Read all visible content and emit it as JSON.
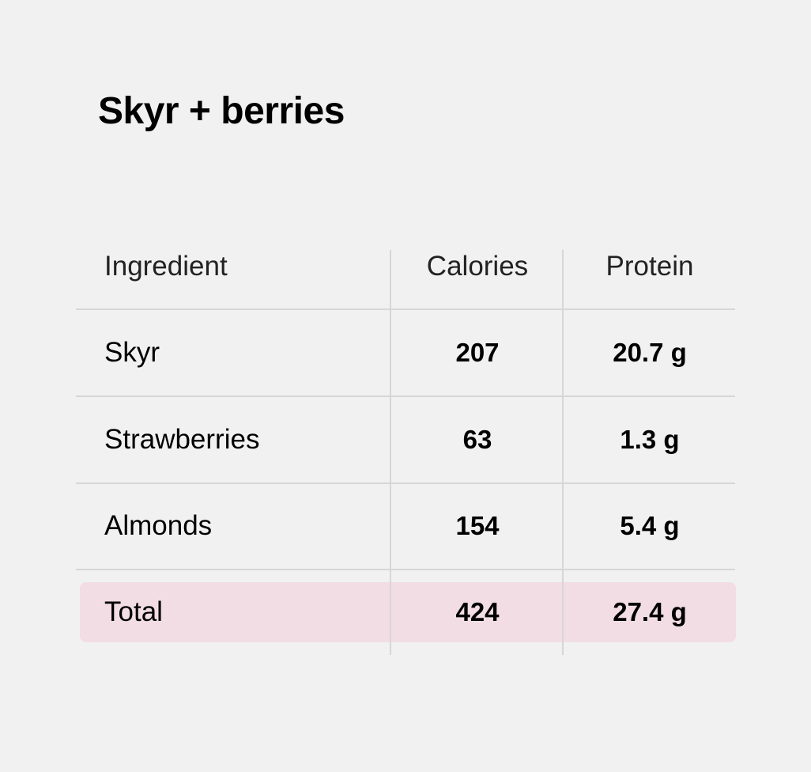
{
  "title": "Skyr + berries",
  "table": {
    "headers": {
      "ingredient": "Ingredient",
      "calories": "Calories",
      "protein": "Protein"
    },
    "rows": [
      {
        "ingredient": "Skyr",
        "calories": "207",
        "protein": "20.7 g"
      },
      {
        "ingredient": "Strawberries",
        "calories": "63",
        "protein": "1.3 g"
      },
      {
        "ingredient": "Almonds",
        "calories": "154",
        "protein": "5.4 g"
      }
    ],
    "total": {
      "label": "Total",
      "calories": "424",
      "protein": "27.4 g"
    }
  },
  "colors": {
    "background": "#f1f1f1",
    "total_highlight": "#f2dde4",
    "grid": "#d6d6d6",
    "text": "#000000"
  }
}
